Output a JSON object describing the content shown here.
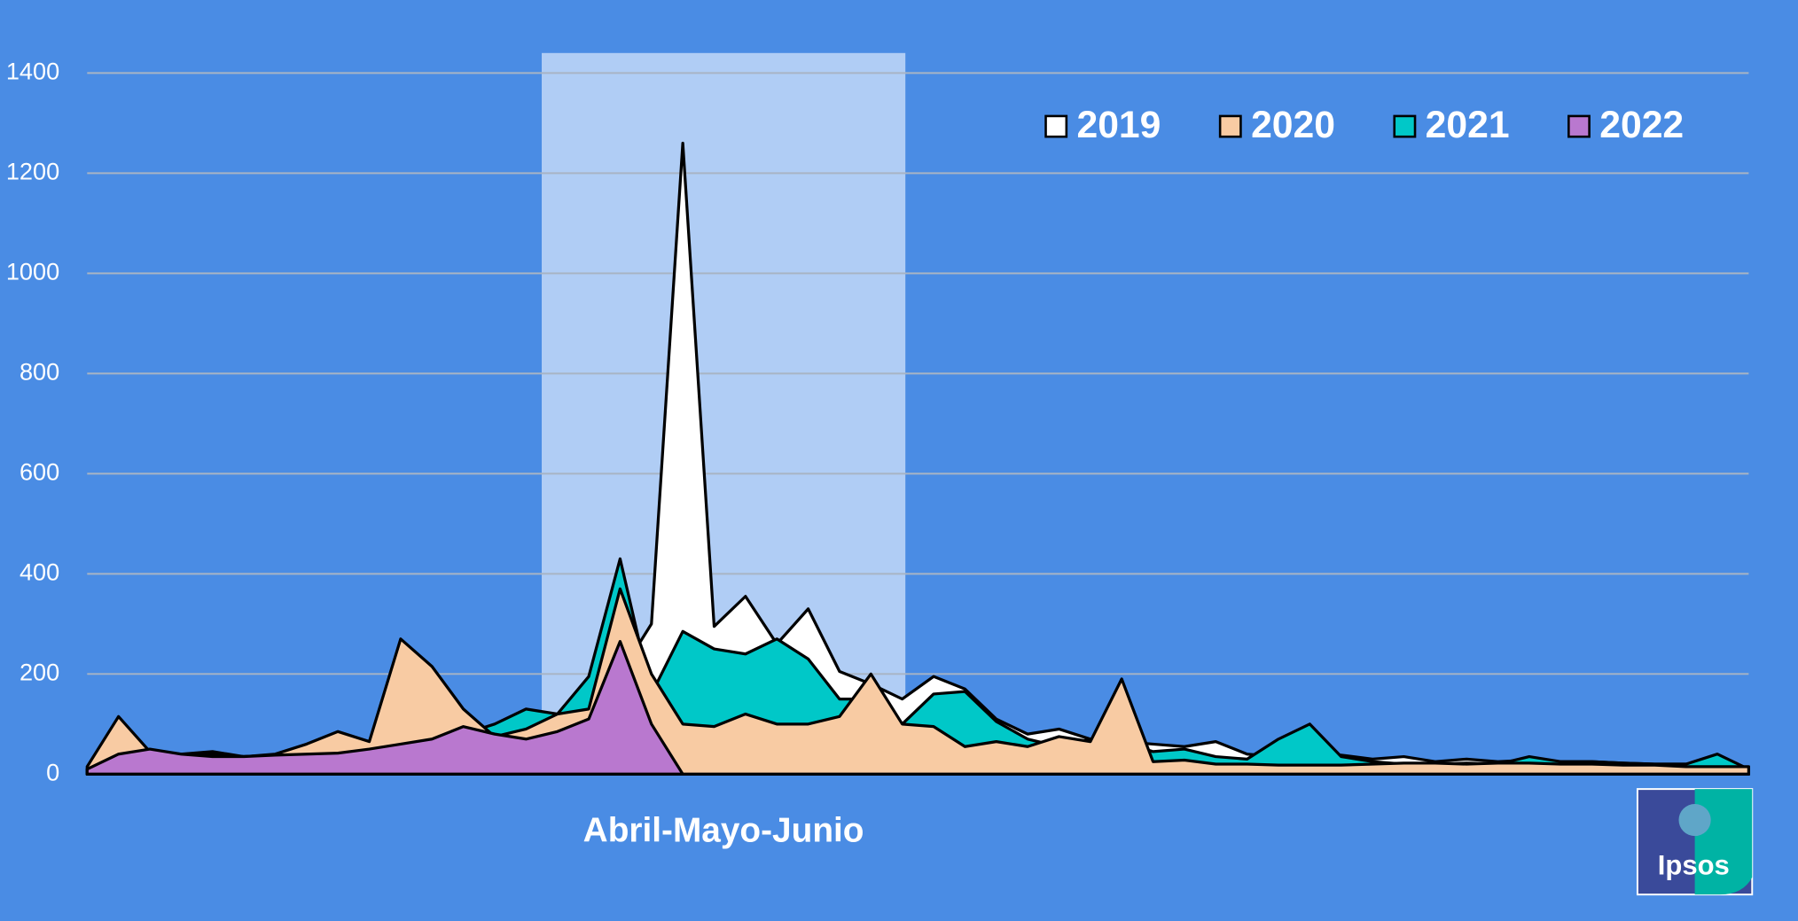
{
  "chart_data": {
    "type": "area",
    "categories": [
      null,
      null,
      null,
      null,
      null,
      null,
      null,
      null,
      null,
      null,
      null,
      null,
      null,
      null,
      null,
      null,
      null,
      null,
      null,
      null,
      null,
      null,
      null,
      null,
      null,
      null,
      null,
      null,
      null,
      null,
      null,
      null,
      null,
      null,
      null,
      null,
      null,
      null,
      null,
      null,
      null,
      null,
      null,
      null,
      null,
      null,
      null,
      null,
      null,
      null,
      null,
      null,
      null,
      null
    ],
    "series": [
      {
        "name": "2019",
        "color": "#ffffff",
        "values": [
          10,
          45,
          45,
          40,
          45,
          35,
          35,
          40,
          45,
          55,
          65,
          70,
          80,
          85,
          100,
          120,
          125,
          200,
          300,
          1260,
          295,
          355,
          260,
          330,
          205,
          180,
          150,
          195,
          170,
          110,
          80,
          90,
          70,
          65,
          60,
          55,
          65,
          40,
          35,
          35,
          38,
          30,
          35,
          25,
          30,
          25,
          28,
          25,
          25,
          22,
          20,
          20,
          22,
          12
        ]
      },
      {
        "name": "2020",
        "color": "#f8cba3",
        "values": [
          15,
          115,
          45,
          35,
          40,
          35,
          40,
          60,
          85,
          65,
          270,
          215,
          130,
          75,
          90,
          120,
          130,
          370,
          200,
          100,
          95,
          120,
          100,
          100,
          115,
          200,
          100,
          95,
          55,
          65,
          55,
          75,
          65,
          190,
          25,
          28,
          20,
          20,
          18,
          18,
          18,
          20,
          22,
          22,
          20,
          22,
          22,
          20,
          20,
          18,
          18,
          15,
          15,
          15
        ]
      },
      {
        "name": "2021",
        "color": "#00c8c8",
        "values": [
          10,
          40,
          45,
          38,
          35,
          35,
          38,
          40,
          45,
          50,
          60,
          60,
          80,
          100,
          130,
          120,
          195,
          430,
          160,
          285,
          250,
          240,
          270,
          230,
          150,
          150,
          100,
          160,
          165,
          105,
          70,
          55,
          70,
          65,
          45,
          50,
          35,
          30,
          70,
          100,
          35,
          25,
          20,
          20,
          22,
          20,
          35,
          25,
          25,
          22,
          20,
          20,
          40,
          10
        ]
      },
      {
        "name": "2022",
        "color": "#b978cf",
        "values": [
          10,
          40,
          50,
          40,
          35,
          35,
          38,
          40,
          42,
          50,
          60,
          70,
          95,
          80,
          70,
          85,
          110,
          265,
          100,
          0,
          null,
          null,
          null,
          null,
          null,
          null,
          null,
          null,
          null,
          null,
          null,
          null,
          null,
          null,
          null,
          null,
          null,
          null,
          null,
          null,
          null,
          null,
          null,
          null,
          null,
          null,
          null,
          null,
          null,
          null,
          null,
          null,
          null,
          null
        ]
      }
    ],
    "ylim": [
      0,
      1440
    ],
    "yticks": [
      0,
      200,
      400,
      600,
      800,
      1000,
      1200,
      1400
    ],
    "grid": true,
    "legend": "top-right",
    "highlight": {
      "label": "Abril-Mayo-Junio",
      "from": 14.5,
      "to": 26.1
    },
    "logo": "Ipsos"
  }
}
